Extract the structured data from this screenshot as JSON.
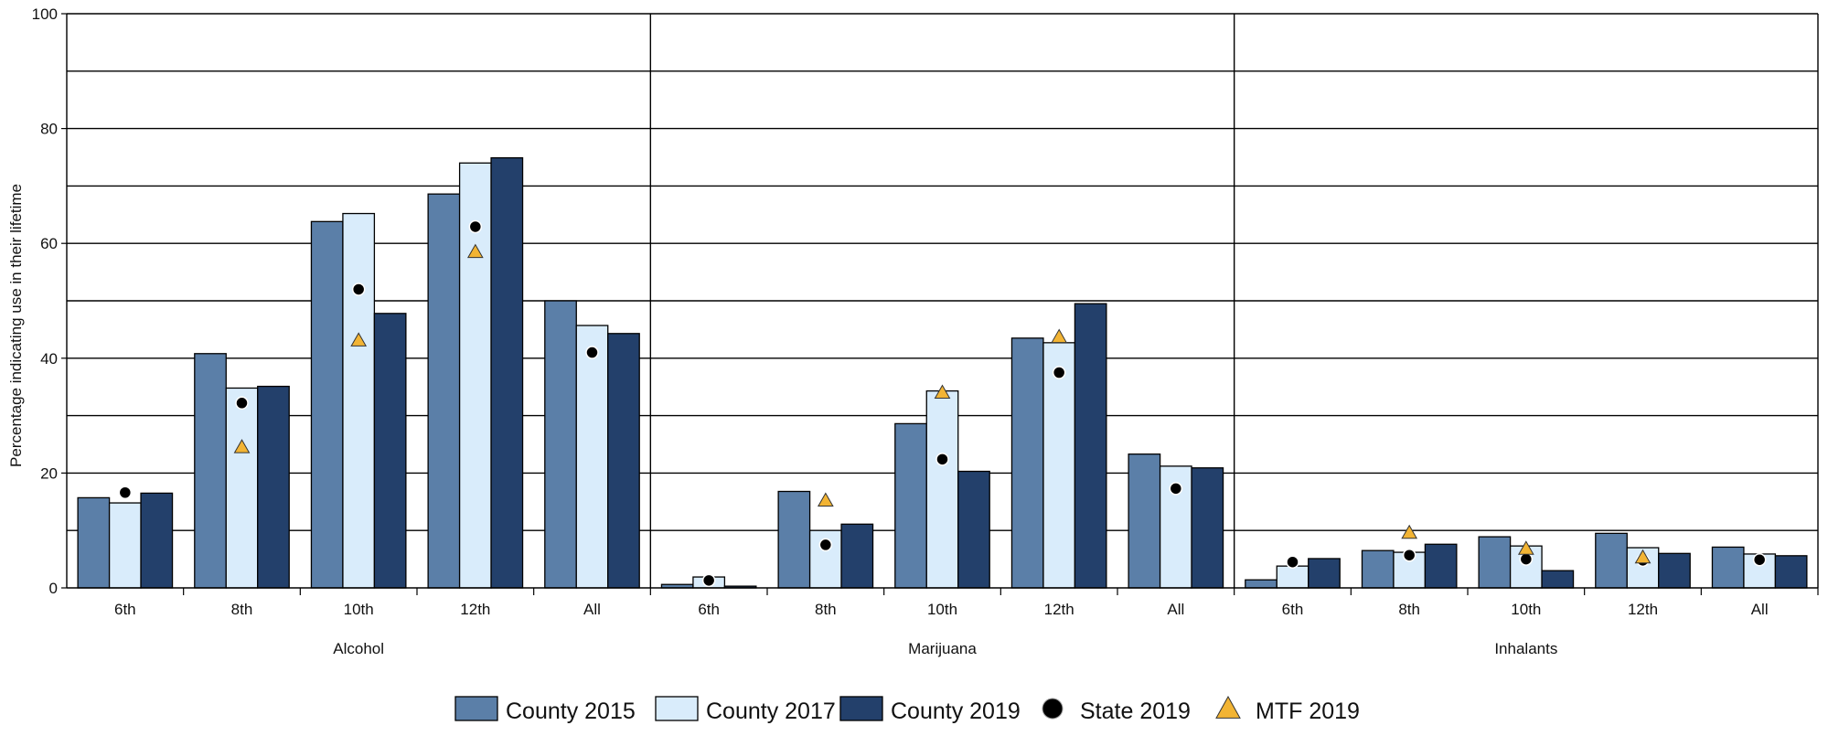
{
  "chart_data": {
    "type": "bar",
    "ylabel": "Percentage indicating use in their lifetime",
    "ylim": [
      0,
      100
    ],
    "yticks": [
      0,
      20,
      40,
      60,
      80,
      100
    ],
    "gridlines": [
      10,
      20,
      30,
      40,
      50,
      60,
      70,
      80,
      90,
      100
    ],
    "grid": true,
    "legend_position": "bottom-center",
    "groups": [
      {
        "name": "Alcohol",
        "categories": [
          "6th",
          "8th",
          "10th",
          "12th",
          "All"
        ],
        "bars": [
          [
            15.7,
            14.8,
            16.5
          ],
          [
            40.8,
            34.8,
            35.1
          ],
          [
            63.8,
            65.2,
            47.8
          ],
          [
            68.6,
            74.0,
            74.9
          ],
          [
            50.0,
            45.7,
            44.3
          ]
        ],
        "state": [
          16.6,
          32.2,
          52.0,
          62.9,
          41.0
        ],
        "mtf": [
          null,
          24.5,
          43.1,
          58.5,
          null
        ]
      },
      {
        "name": "Marijuana",
        "categories": [
          "6th",
          "8th",
          "10th",
          "12th",
          "All"
        ],
        "bars": [
          [
            0.6,
            1.9,
            0.3
          ],
          [
            16.8,
            10.0,
            11.1
          ],
          [
            28.6,
            34.3,
            20.3
          ],
          [
            43.5,
            42.7,
            49.5
          ],
          [
            23.3,
            21.2,
            20.9
          ]
        ],
        "state": [
          1.3,
          7.5,
          22.4,
          37.5,
          17.3
        ],
        "mtf": [
          null,
          15.2,
          34.0,
          43.7,
          null
        ]
      },
      {
        "name": "Inhalants",
        "categories": [
          "6th",
          "8th",
          "10th",
          "12th",
          "All"
        ],
        "bars": [
          [
            1.4,
            3.8,
            5.1
          ],
          [
            6.5,
            6.2,
            7.6
          ],
          [
            8.9,
            7.3,
            3.0
          ],
          [
            9.5,
            7.0,
            6.0
          ],
          [
            7.1,
            5.9,
            5.6
          ]
        ],
        "state": [
          4.5,
          5.7,
          5.0,
          4.8,
          4.9
        ],
        "mtf": [
          null,
          9.6,
          6.8,
          5.3,
          null
        ]
      }
    ],
    "series": [
      {
        "name": "County 2015",
        "kind": "bar",
        "color": "#5b7fa8"
      },
      {
        "name": "County 2017",
        "kind": "bar",
        "color": "#d9ecfb"
      },
      {
        "name": "County 2019",
        "kind": "bar",
        "color": "#23406b"
      },
      {
        "name": "State 2019",
        "kind": "marker-circle",
        "color": "#000000"
      },
      {
        "name": "MTF 2019",
        "kind": "marker-triangle",
        "color": "#f2b434"
      }
    ]
  }
}
